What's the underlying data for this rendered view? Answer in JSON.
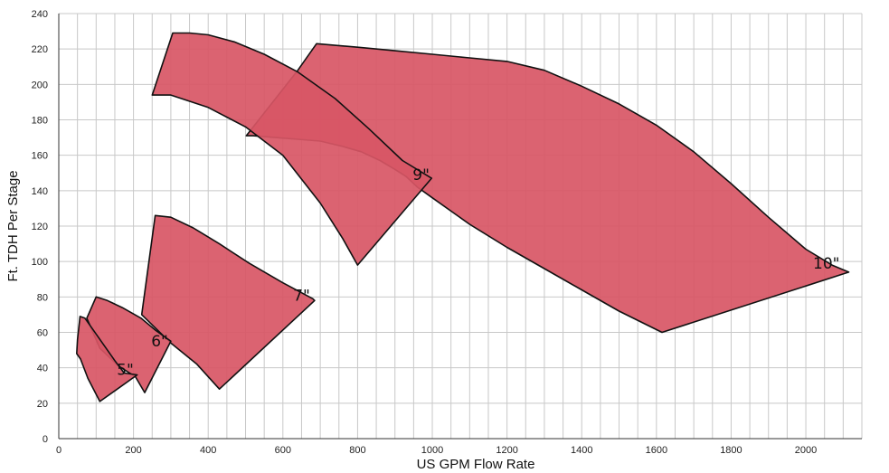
{
  "chart_data": {
    "type": "area",
    "xlabel": "US GPM Flow Rate",
    "ylabel": "Ft. TDH Per Stage",
    "xlim": [
      0,
      2150
    ],
    "ylim": [
      0,
      240
    ],
    "xticks": [
      0,
      200,
      400,
      600,
      800,
      1000,
      1200,
      1400,
      1600,
      1800,
      2000
    ],
    "yticks": [
      0,
      20,
      40,
      60,
      80,
      100,
      120,
      140,
      160,
      180,
      200,
      220,
      240
    ],
    "grid": true,
    "fill_color": "#d85665",
    "series": [
      {
        "name": "5\"",
        "label_at": [
          178,
          36
        ],
        "points": [
          [
            57,
            69
          ],
          [
            70,
            68
          ],
          [
            90,
            62
          ],
          [
            120,
            53
          ],
          [
            150,
            44
          ],
          [
            175,
            37
          ],
          [
            210,
            36
          ],
          [
            110,
            21
          ],
          [
            78,
            34
          ],
          [
            58,
            45
          ],
          [
            48,
            48
          ],
          [
            50,
            56
          ]
        ]
      },
      {
        "name": "6\"",
        "label_at": [
          270,
          52
        ],
        "points": [
          [
            100,
            80
          ],
          [
            130,
            78
          ],
          [
            170,
            74
          ],
          [
            220,
            68
          ],
          [
            260,
            61
          ],
          [
            300,
            55
          ],
          [
            230,
            26
          ],
          [
            205,
            35
          ],
          [
            160,
            41
          ],
          [
            110,
            51
          ],
          [
            75,
            68
          ]
        ]
      },
      {
        "name": "7\"",
        "label_at": [
          650,
          78
        ],
        "points": [
          [
            258,
            126
          ],
          [
            300,
            125
          ],
          [
            360,
            119
          ],
          [
            430,
            110
          ],
          [
            510,
            99
          ],
          [
            600,
            88
          ],
          [
            680,
            79
          ],
          [
            685,
            78
          ],
          [
            430,
            28
          ],
          [
            370,
            42
          ],
          [
            300,
            54
          ],
          [
            222,
            70
          ]
        ]
      },
      {
        "name": "9\"",
        "label_at": [
          970,
          146
        ],
        "points": [
          [
            305,
            229
          ],
          [
            350,
            229
          ],
          [
            400,
            228
          ],
          [
            470,
            224
          ],
          [
            550,
            217
          ],
          [
            640,
            207
          ],
          [
            740,
            192
          ],
          [
            830,
            175
          ],
          [
            920,
            157
          ],
          [
            998,
            147
          ],
          [
            800,
            98
          ],
          [
            760,
            113
          ],
          [
            700,
            133
          ],
          [
            600,
            160
          ],
          [
            500,
            176
          ],
          [
            400,
            187
          ],
          [
            300,
            194
          ],
          [
            250,
            194
          ]
        ]
      },
      {
        "name": "10\"",
        "label_at": [
          2055,
          96
        ],
        "points": [
          [
            690,
            223
          ],
          [
            800,
            221
          ],
          [
            900,
            219
          ],
          [
            1000,
            217
          ],
          [
            1100,
            215
          ],
          [
            1200,
            213
          ],
          [
            1300,
            208
          ],
          [
            1400,
            199
          ],
          [
            1500,
            189
          ],
          [
            1600,
            177
          ],
          [
            1700,
            162
          ],
          [
            1800,
            144
          ],
          [
            1900,
            125
          ],
          [
            2000,
            107
          ],
          [
            2070,
            98
          ],
          [
            2115,
            94
          ],
          [
            1615,
            60
          ],
          [
            1500,
            72
          ],
          [
            1400,
            84
          ],
          [
            1300,
            96
          ],
          [
            1200,
            108
          ],
          [
            1100,
            121
          ],
          [
            1000,
            136
          ],
          [
            960,
            142
          ],
          [
            930,
            148
          ],
          [
            900,
            152
          ],
          [
            860,
            157
          ],
          [
            810,
            162
          ],
          [
            760,
            165
          ],
          [
            700,
            168
          ],
          [
            640,
            169
          ],
          [
            580,
            170
          ],
          [
            520,
            171
          ],
          [
            502,
            171
          ],
          [
            640,
            208
          ]
        ]
      }
    ]
  }
}
